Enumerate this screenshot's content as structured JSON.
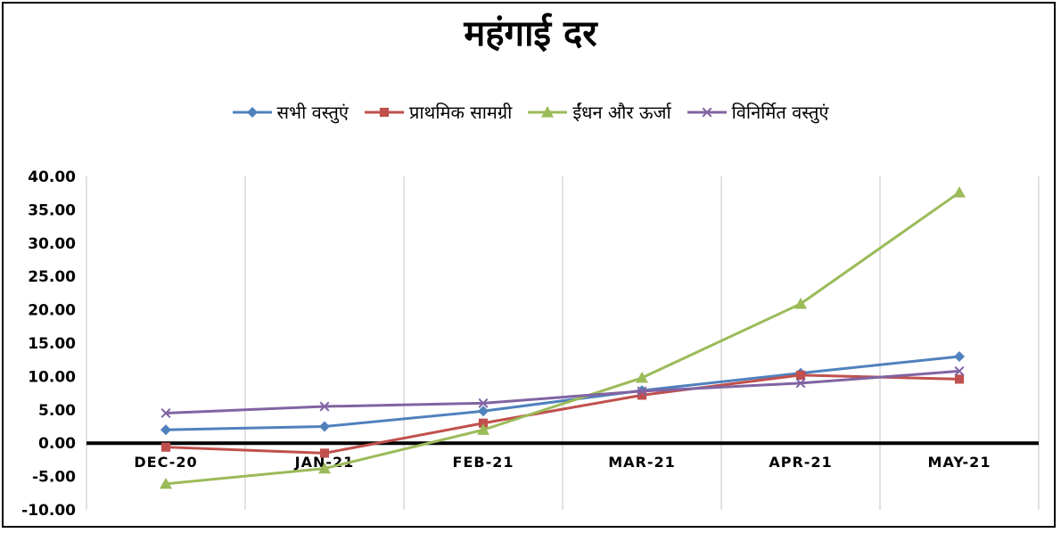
{
  "chart_data": {
    "type": "line",
    "title": "महंगाई दर",
    "categories": [
      "DEC-20",
      "JAN-21",
      "FEB-21",
      "MAR-21",
      "APR-21",
      "MAY-21"
    ],
    "ylim": [
      -10,
      40
    ],
    "yticks": [
      "40.00",
      "35.00",
      "30.00",
      "25.00",
      "20.00",
      "15.00",
      "10.00",
      "5.00",
      "0.00",
      "-5.00",
      "-10.00"
    ],
    "ytick_values": [
      40,
      35,
      30,
      25,
      20,
      15,
      10,
      5,
      0,
      -5,
      -10
    ],
    "grid": "vertical",
    "legend_position": "top",
    "series": [
      {
        "name": "सभी वस्तुएं",
        "color": "#4F81BD",
        "marker": "diamond",
        "values": [
          2.0,
          2.5,
          4.8,
          7.9,
          10.5,
          13.0
        ]
      },
      {
        "name": "प्राथमिक सामग्री",
        "color": "#C0504D",
        "marker": "square",
        "values": [
          -0.6,
          -1.5,
          3.0,
          7.2,
          10.2,
          9.6
        ]
      },
      {
        "name": "ईंधन और ऊर्जा",
        "color": "#9BBB59",
        "marker": "triangle",
        "values": [
          -6.1,
          -3.8,
          2.0,
          9.8,
          20.9,
          37.6
        ]
      },
      {
        "name": "विनिर्मित वस्तुएं",
        "color": "#8064A2",
        "marker": "x",
        "values": [
          4.5,
          5.5,
          6.0,
          7.8,
          9.0,
          10.8
        ]
      }
    ]
  }
}
